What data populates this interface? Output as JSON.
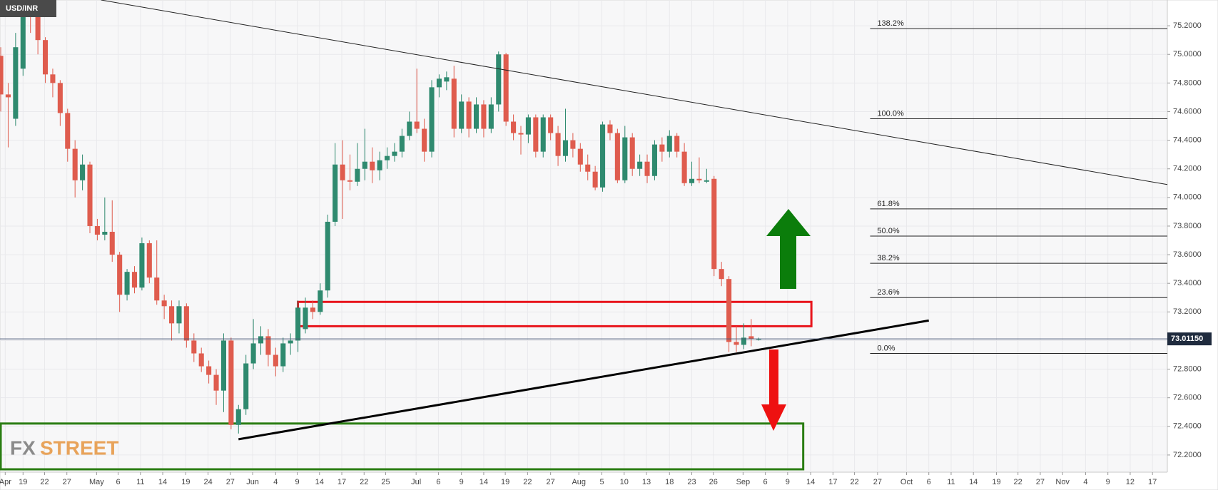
{
  "chart_data": {
    "type": "candlestick",
    "symbol": "USD/INR",
    "watermark": [
      "FX",
      "STREET"
    ],
    "up_color": "#2f8a6f",
    "down_color": "#df5c4e",
    "grid": true,
    "xlim": [
      -0.1,
      157
    ],
    "ylim": [
      72.08,
      75.38
    ],
    "yticks": [
      {
        "value": 72.2,
        "label": "72.2000"
      },
      {
        "value": 72.4,
        "label": "72.4000"
      },
      {
        "value": 72.6,
        "label": "72.6000"
      },
      {
        "value": 72.8,
        "label": "72.8000"
      },
      {
        "value": 73.0,
        "label": "73.0000"
      },
      {
        "value": 73.2,
        "label": "73.2000"
      },
      {
        "value": 73.4,
        "label": "73.4000"
      },
      {
        "value": 73.6,
        "label": "73.6000"
      },
      {
        "value": 73.8,
        "label": "73.8000"
      },
      {
        "value": 74.0,
        "label": "74.0000"
      },
      {
        "value": 74.2,
        "label": "74.2000"
      },
      {
        "value": 74.4,
        "label": "74.4000"
      },
      {
        "value": 74.6,
        "label": "74.6000"
      },
      {
        "value": 74.8,
        "label": "74.8000"
      },
      {
        "value": 75.0,
        "label": "75.0000"
      },
      {
        "value": 75.2,
        "label": "75.2000"
      }
    ],
    "xticks": [
      {
        "value": 0.6,
        "label": "Apr"
      },
      {
        "value": 3.0,
        "label": "19"
      },
      {
        "value": 5.9,
        "label": "22"
      },
      {
        "value": 8.9,
        "label": "27"
      },
      {
        "value": 12.9,
        "label": "May"
      },
      {
        "value": 15.8,
        "label": "6"
      },
      {
        "value": 18.8,
        "label": "11"
      },
      {
        "value": 21.8,
        "label": "14"
      },
      {
        "value": 24.9,
        "label": "19"
      },
      {
        "value": 27.9,
        "label": "24"
      },
      {
        "value": 30.9,
        "label": "27"
      },
      {
        "value": 33.9,
        "label": "Jun"
      },
      {
        "value": 37.0,
        "label": "4"
      },
      {
        "value": 39.9,
        "label": "9"
      },
      {
        "value": 42.9,
        "label": "14"
      },
      {
        "value": 45.9,
        "label": "17"
      },
      {
        "value": 48.9,
        "label": "22"
      },
      {
        "value": 51.8,
        "label": "25"
      },
      {
        "value": 55.9,
        "label": "Jul"
      },
      {
        "value": 58.9,
        "label": "6"
      },
      {
        "value": 62.0,
        "label": "9"
      },
      {
        "value": 65.0,
        "label": "14"
      },
      {
        "value": 67.9,
        "label": "19"
      },
      {
        "value": 70.9,
        "label": "22"
      },
      {
        "value": 74.0,
        "label": "27"
      },
      {
        "value": 77.8,
        "label": "Aug"
      },
      {
        "value": 80.9,
        "label": "5"
      },
      {
        "value": 83.9,
        "label": "10"
      },
      {
        "value": 86.9,
        "label": "13"
      },
      {
        "value": 90.0,
        "label": "18"
      },
      {
        "value": 93.0,
        "label": "23"
      },
      {
        "value": 95.9,
        "label": "26"
      },
      {
        "value": 99.9,
        "label": "Sep"
      },
      {
        "value": 102.9,
        "label": "6"
      },
      {
        "value": 105.9,
        "label": "9"
      },
      {
        "value": 109.0,
        "label": "14"
      },
      {
        "value": 112.0,
        "label": "17"
      },
      {
        "value": 114.9,
        "label": "22"
      },
      {
        "value": 118.0,
        "label": "27"
      },
      {
        "value": 121.9,
        "label": "Oct"
      },
      {
        "value": 124.9,
        "label": "6"
      },
      {
        "value": 127.9,
        "label": "11"
      },
      {
        "value": 130.9,
        "label": "14"
      },
      {
        "value": 134.0,
        "label": "19"
      },
      {
        "value": 136.9,
        "label": "22"
      },
      {
        "value": 139.9,
        "label": "27"
      },
      {
        "value": 142.9,
        "label": "Nov"
      },
      {
        "value": 146.0,
        "label": "4"
      },
      {
        "value": 149.0,
        "label": "9"
      },
      {
        "value": 152.0,
        "label": "12"
      },
      {
        "value": 155.0,
        "label": "17"
      }
    ],
    "ohlc": [
      [
        74.99,
        75.05,
        74.6,
        74.72
      ],
      [
        74.72,
        74.8,
        74.35,
        74.7
      ],
      [
        74.55,
        75.15,
        74.5,
        75.05
      ],
      [
        74.9,
        75.38,
        74.85,
        75.35
      ],
      [
        75.35,
        75.38,
        75.15,
        75.27
      ],
      [
        75.27,
        75.3,
        75.0,
        75.1
      ],
      [
        75.1,
        75.12,
        74.8,
        74.86
      ],
      [
        74.86,
        74.9,
        74.7,
        74.8
      ],
      [
        74.8,
        74.82,
        74.5,
        74.59
      ],
      [
        74.59,
        74.62,
        74.25,
        74.34
      ],
      [
        74.34,
        74.4,
        74.0,
        74.12
      ],
      [
        74.12,
        74.3,
        74.05,
        74.23
      ],
      [
        74.23,
        74.25,
        73.75,
        73.8
      ],
      [
        73.8,
        73.85,
        73.7,
        73.74
      ],
      [
        73.74,
        74.0,
        73.7,
        73.76
      ],
      [
        73.76,
        73.98,
        73.55,
        73.6
      ],
      [
        73.6,
        73.62,
        73.2,
        73.32
      ],
      [
        73.32,
        73.5,
        73.28,
        73.48
      ],
      [
        73.48,
        73.52,
        73.33,
        73.37
      ],
      [
        73.37,
        73.72,
        73.35,
        73.68
      ],
      [
        73.68,
        73.7,
        73.4,
        73.44
      ],
      [
        73.44,
        73.7,
        73.25,
        73.28
      ],
      [
        73.28,
        73.32,
        73.15,
        73.24
      ],
      [
        73.24,
        73.28,
        73.0,
        73.12
      ],
      [
        73.12,
        73.28,
        73.05,
        73.24
      ],
      [
        73.24,
        73.26,
        72.95,
        73.0
      ],
      [
        73.0,
        73.05,
        72.85,
        72.91
      ],
      [
        72.91,
        72.95,
        72.78,
        72.82
      ],
      [
        72.82,
        72.86,
        72.7,
        72.76
      ],
      [
        72.76,
        72.8,
        72.55,
        72.65
      ],
      [
        72.65,
        73.05,
        72.5,
        73.0
      ],
      [
        73.0,
        73.02,
        72.38,
        72.41
      ],
      [
        72.41,
        72.55,
        72.35,
        72.52
      ],
      [
        72.52,
        72.9,
        72.48,
        72.84
      ],
      [
        72.84,
        73.15,
        72.8,
        72.98
      ],
      [
        72.98,
        73.1,
        72.9,
        73.03
      ],
      [
        73.03,
        73.08,
        72.82,
        72.9
      ],
      [
        72.9,
        72.95,
        72.75,
        72.82
      ],
      [
        72.82,
        73.02,
        72.78,
        72.98
      ],
      [
        72.98,
        73.05,
        72.9,
        73.0
      ],
      [
        73.0,
        73.28,
        72.92,
        73.23
      ],
      [
        73.08,
        73.3,
        73.05,
        73.23
      ],
      [
        73.23,
        73.28,
        73.15,
        73.2
      ],
      [
        73.2,
        73.4,
        73.18,
        73.35
      ],
      [
        73.35,
        73.88,
        73.3,
        73.83
      ],
      [
        73.83,
        74.38,
        73.8,
        74.23
      ],
      [
        74.23,
        74.4,
        73.85,
        74.12
      ],
      [
        74.12,
        74.3,
        74.05,
        74.11
      ],
      [
        74.11,
        74.38,
        74.08,
        74.2
      ],
      [
        74.2,
        74.48,
        74.12,
        74.25
      ],
      [
        74.25,
        74.35,
        74.1,
        74.19
      ],
      [
        74.19,
        74.32,
        74.12,
        74.26
      ],
      [
        74.26,
        74.35,
        74.2,
        74.29
      ],
      [
        74.29,
        74.38,
        74.25,
        74.32
      ],
      [
        74.32,
        74.48,
        74.28,
        74.43
      ],
      [
        74.43,
        74.6,
        74.4,
        74.53
      ],
      [
        74.53,
        74.9,
        74.45,
        74.48
      ],
      [
        74.48,
        74.55,
        74.25,
        74.32
      ],
      [
        74.32,
        74.82,
        74.28,
        74.77
      ],
      [
        74.77,
        74.86,
        74.7,
        74.83
      ],
      [
        74.81,
        74.88,
        74.75,
        74.84
      ],
      [
        74.83,
        74.92,
        74.42,
        74.48
      ],
      [
        74.48,
        74.72,
        74.45,
        74.67
      ],
      [
        74.67,
        74.7,
        74.42,
        74.48
      ],
      [
        74.48,
        74.7,
        74.45,
        74.65
      ],
      [
        74.65,
        74.68,
        74.42,
        74.48
      ],
      [
        74.48,
        74.7,
        74.45,
        74.65
      ],
      [
        74.65,
        75.02,
        74.6,
        75.0
      ],
      [
        75.0,
        75.01,
        74.5,
        74.53
      ],
      [
        74.53,
        74.58,
        74.4,
        74.45
      ],
      [
        74.45,
        74.5,
        74.3,
        74.44
      ],
      [
        74.44,
        74.58,
        74.38,
        74.56
      ],
      [
        74.56,
        74.58,
        74.28,
        74.32
      ],
      [
        74.32,
        74.58,
        74.28,
        74.56
      ],
      [
        74.56,
        74.58,
        74.4,
        74.45
      ],
      [
        74.45,
        74.5,
        74.22,
        74.29
      ],
      [
        74.29,
        74.62,
        74.25,
        74.4
      ],
      [
        74.4,
        74.45,
        74.28,
        74.34
      ],
      [
        74.34,
        74.38,
        74.18,
        74.23
      ],
      [
        74.23,
        74.3,
        74.12,
        74.18
      ],
      [
        74.18,
        74.22,
        74.05,
        74.07
      ],
      [
        74.07,
        74.53,
        74.04,
        74.51
      ],
      [
        74.51,
        74.54,
        74.4,
        74.45
      ],
      [
        74.45,
        74.48,
        74.1,
        74.12
      ],
      [
        74.12,
        74.5,
        74.1,
        74.42
      ],
      [
        74.42,
        74.45,
        74.15,
        74.2
      ],
      [
        74.2,
        74.3,
        74.15,
        74.25
      ],
      [
        74.25,
        74.3,
        74.1,
        74.15
      ],
      [
        74.15,
        74.4,
        74.12,
        74.37
      ],
      [
        74.37,
        74.42,
        74.25,
        74.32
      ],
      [
        74.32,
        74.47,
        74.28,
        74.43
      ],
      [
        74.43,
        74.45,
        74.28,
        74.32
      ],
      [
        74.32,
        74.38,
        74.08,
        74.1
      ],
      [
        74.1,
        74.25,
        74.08,
        74.13
      ],
      [
        74.13,
        74.28,
        74.1,
        74.12
      ],
      [
        74.11,
        74.2,
        74.1,
        74.12
      ],
      [
        74.13,
        74.15,
        73.45,
        73.5
      ],
      [
        73.5,
        73.55,
        73.38,
        73.43
      ],
      [
        73.43,
        73.45,
        72.92,
        72.99
      ],
      [
        72.99,
        73.1,
        72.92,
        72.97
      ],
      [
        72.97,
        73.12,
        72.94,
        73.02
      ],
      [
        73.03,
        73.15,
        72.96,
        73.01
      ],
      [
        73.01,
        73.02,
        73.0,
        73.01
      ]
    ],
    "fib_levels": [
      {
        "label": "138.2%",
        "price": 75.18
      },
      {
        "label": "100.0%",
        "price": 74.55
      },
      {
        "label": "61.8%",
        "price": 73.92
      },
      {
        "label": "50.0%",
        "price": 73.73
      },
      {
        "label": "38.2%",
        "price": 73.54
      },
      {
        "label": "23.6%",
        "price": 73.3
      },
      {
        "label": "0.0%",
        "price": 72.91
      }
    ],
    "fib_start": 117.0,
    "trendlines": [
      {
        "x": [
          13.5,
          157
        ],
        "price": [
          75.38,
          74.09
        ],
        "color": "#222222",
        "width": 1
      },
      {
        "x": [
          32.0,
          124.9
        ],
        "price": [
          72.31,
          73.14
        ],
        "color": "#000000",
        "width": 3
      }
    ],
    "zones": [
      {
        "x": [
          39.9,
          109.0
        ],
        "price": [
          73.27,
          73.1
        ],
        "color": "#e8141b"
      },
      {
        "x": [
          -0.1,
          107.9
        ],
        "price": [
          72.42,
          72.1
        ],
        "color": "#2a7d12"
      }
    ],
    "last_price": 73.0115,
    "last_price_label": "73.01150"
  }
}
